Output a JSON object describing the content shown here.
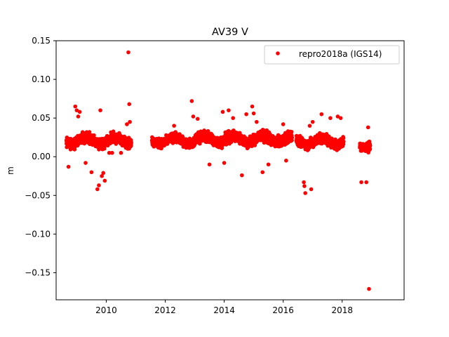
{
  "chart_data": {
    "type": "scatter",
    "title": "AV39 V",
    "xlabel": "",
    "ylabel": "m",
    "xlim": [
      2008.3,
      2020.1
    ],
    "ylim": [
      -0.185,
      0.15
    ],
    "x_ticks": [
      2010,
      2012,
      2014,
      2016,
      2018
    ],
    "x_tick_labels": [
      "2010",
      "2012",
      "2014",
      "2016",
      "2018"
    ],
    "y_ticks": [
      0.15,
      0.1,
      0.05,
      0.0,
      -0.05,
      -0.1,
      -0.15
    ],
    "y_tick_labels": [
      "0.15",
      "0.10",
      "0.05",
      "0.00",
      "−0.05",
      "−0.10",
      "−0.15"
    ],
    "grid": false,
    "legend_position": "top-right",
    "series": [
      {
        "name": "repro2018a (IGS14)",
        "color": "#ff0000",
        "marker": "circle",
        "segments": [
          {
            "x_start": 2008.65,
            "x_end": 2010.85,
            "y_center": 0.021,
            "y_spread": 0.011
          },
          {
            "x_start": 2011.55,
            "x_end": 2013.0,
            "y_center": 0.021,
            "y_spread": 0.01
          },
          {
            "x_start": 2013.0,
            "x_end": 2016.3,
            "y_center": 0.023,
            "y_spread": 0.012
          },
          {
            "x_start": 2016.45,
            "x_end": 2018.05,
            "y_center": 0.02,
            "y_spread": 0.011
          },
          {
            "x_start": 2018.6,
            "x_end": 2018.95,
            "y_center": 0.016,
            "y_spread": 0.01
          }
        ],
        "highlights": [
          [
            2008.72,
            -0.013
          ],
          [
            2008.95,
            0.065
          ],
          [
            2009.0,
            0.06
          ],
          [
            2009.05,
            0.052
          ],
          [
            2009.1,
            0.058
          ],
          [
            2009.3,
            -0.008
          ],
          [
            2009.5,
            -0.02
          ],
          [
            2009.7,
            -0.042
          ],
          [
            2009.75,
            -0.037
          ],
          [
            2009.8,
            0.06
          ],
          [
            2009.85,
            -0.025
          ],
          [
            2009.9,
            -0.021
          ],
          [
            2009.95,
            -0.031
          ],
          [
            2010.1,
            0.005
          ],
          [
            2010.2,
            0.005
          ],
          [
            2010.5,
            0.005
          ],
          [
            2010.75,
            0.135
          ],
          [
            2010.78,
            0.068
          ],
          [
            2010.8,
            0.045
          ],
          [
            2010.7,
            0.042
          ],
          [
            2012.3,
            0.04
          ],
          [
            2012.9,
            0.072
          ],
          [
            2012.95,
            0.052
          ],
          [
            2013.1,
            0.049
          ],
          [
            2013.5,
            -0.01
          ],
          [
            2013.95,
            0.058
          ],
          [
            2014.15,
            0.06
          ],
          [
            2014.0,
            -0.008
          ],
          [
            2014.3,
            0.05
          ],
          [
            2014.6,
            -0.024
          ],
          [
            2014.75,
            0.055
          ],
          [
            2014.95,
            0.065
          ],
          [
            2015.0,
            0.056
          ],
          [
            2015.1,
            0.045
          ],
          [
            2015.3,
            -0.02
          ],
          [
            2015.5,
            -0.01
          ],
          [
            2016.0,
            0.042
          ],
          [
            2016.1,
            -0.005
          ],
          [
            2016.7,
            -0.033
          ],
          [
            2016.72,
            -0.038
          ],
          [
            2016.75,
            -0.047
          ],
          [
            2016.9,
            0.04
          ],
          [
            2016.95,
            -0.042
          ],
          [
            2017.0,
            0.045
          ],
          [
            2017.3,
            0.055
          ],
          [
            2017.6,
            0.05
          ],
          [
            2017.85,
            0.052
          ],
          [
            2017.95,
            0.05
          ],
          [
            2018.65,
            -0.033
          ],
          [
            2018.75,
            0.015
          ],
          [
            2018.82,
            -0.033
          ],
          [
            2018.88,
            0.038
          ],
          [
            2018.91,
            -0.171
          ]
        ]
      }
    ]
  }
}
